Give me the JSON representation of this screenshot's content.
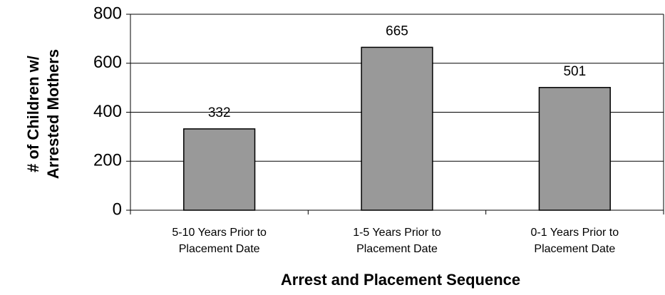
{
  "chart_data": {
    "type": "bar",
    "x_label": "Arrest and Placement Sequence",
    "y_label": [
      "# of Children w/",
      "Arrested Mothers"
    ],
    "categories": [
      [
        "5-10 Years Prior to",
        "Placement Date"
      ],
      [
        "1-5 Years Prior to",
        "Placement Date"
      ],
      [
        "0-1 Years Prior to",
        "Placement Date"
      ]
    ],
    "values": [
      332,
      665,
      501
    ],
    "color": "#999999",
    "ylim": [
      0,
      800
    ],
    "yticks": [
      0,
      200,
      400,
      600,
      800
    ],
    "grid": true
  }
}
